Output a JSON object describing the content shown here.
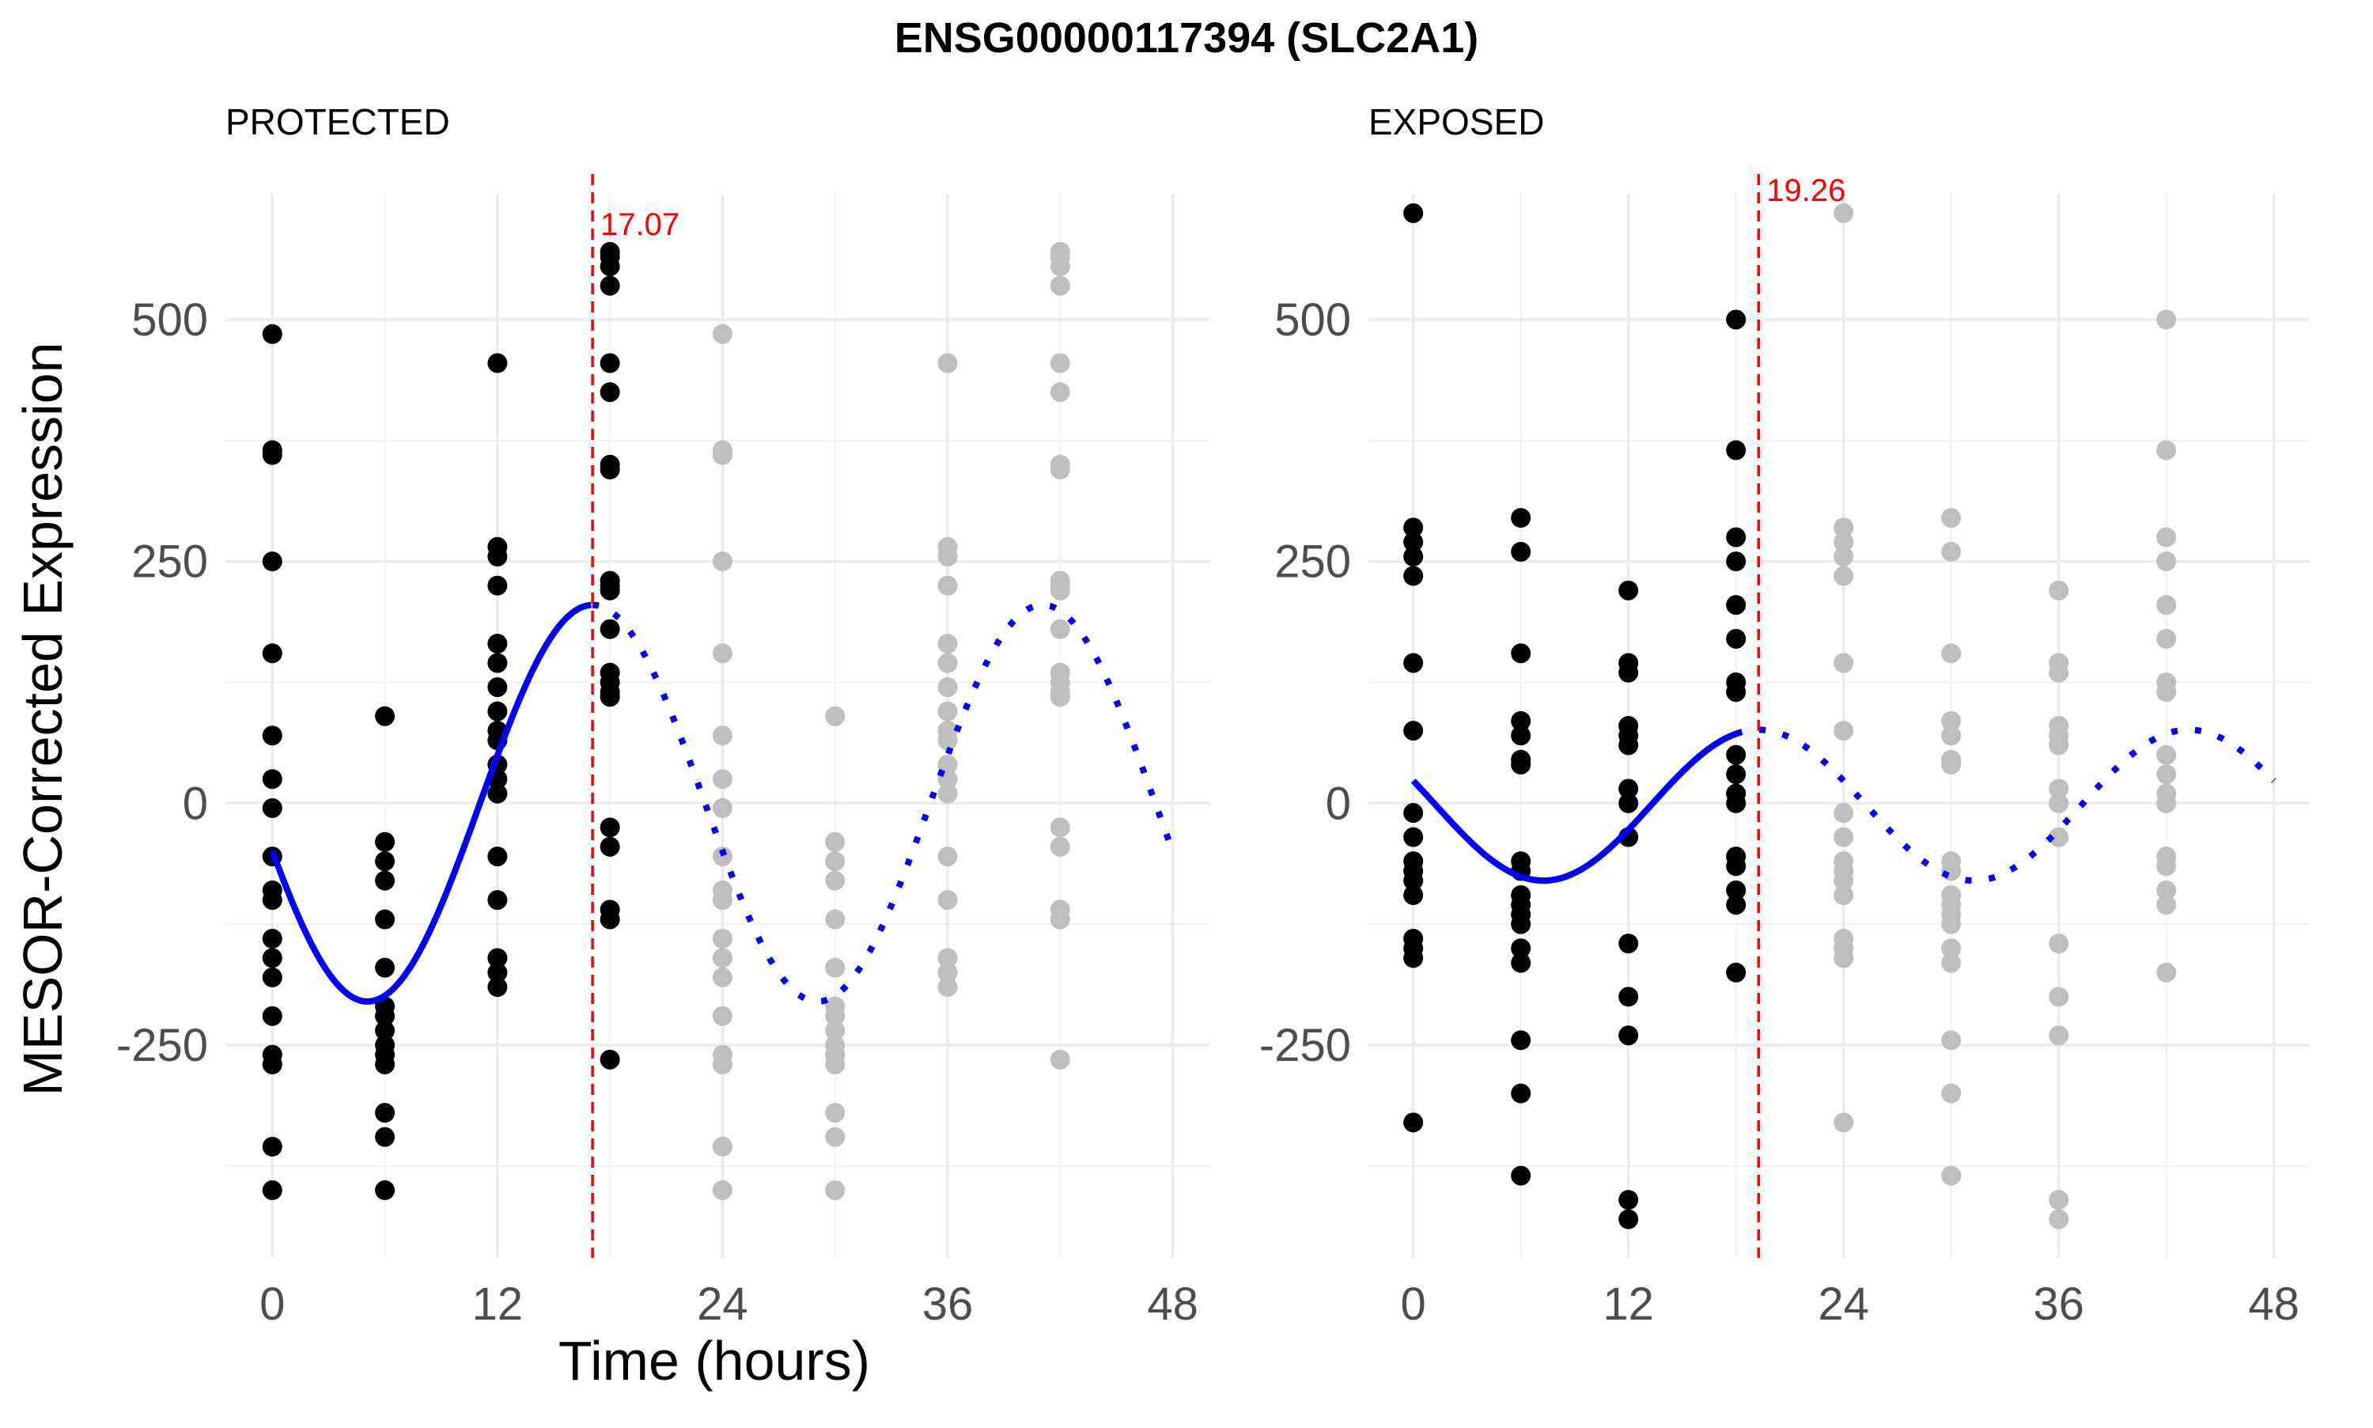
{
  "chart_data": {
    "type": "scatter",
    "title": "ENSG00000117394 (SLC2A1)",
    "xlabel": "Time (hours)",
    "ylabel": "MESOR-Corrected Expression",
    "x_ticks": [
      0,
      12,
      24,
      36,
      48
    ],
    "y_ticks": [
      -250,
      0,
      250,
      500
    ],
    "xlim": [
      -2.5,
      50
    ],
    "ylim": [
      -470,
      630
    ],
    "grid": true,
    "colors": {
      "observed": "#000000",
      "replicated": "#bebebe",
      "fit": "#0000ff",
      "peak": "#ff0000"
    },
    "panels": [
      {
        "name": "PROTECTED",
        "peak_time": 17.07,
        "peak_label": "17.07",
        "fit": {
          "mesor": 0,
          "amplitude": 205,
          "period": 24,
          "peak": 17.07,
          "fit_end": 17.07,
          "x_end": 48
        },
        "times": [
          0,
          6,
          12,
          18
        ],
        "points": [
          [
            485,
            365,
            360,
            250,
            155,
            70,
            25,
            -5,
            -55,
            -90,
            -100,
            -140,
            -160,
            -180,
            -220,
            -260,
            -270,
            -355,
            -400
          ],
          [
            90,
            -40,
            -60,
            -80,
            -120,
            -170,
            -210,
            -220,
            -235,
            -250,
            -260,
            -270,
            -320,
            -345,
            -400
          ],
          [
            455,
            265,
            255,
            225,
            165,
            145,
            120,
            95,
            75,
            65,
            40,
            25,
            10,
            -55,
            -100,
            -160,
            -175,
            -190
          ],
          [
            570,
            565,
            555,
            535,
            455,
            425,
            350,
            345,
            230,
            225,
            220,
            180,
            135,
            125,
            115,
            110,
            -25,
            -45,
            -110,
            -120,
            -265
          ]
        ]
      },
      {
        "name": "EXPOSED",
        "peak_time": 19.26,
        "peak_label": "19.26",
        "fit": {
          "mesor": -2,
          "amplitude": 78,
          "period": 24,
          "peak": 19.26,
          "fit_end": 18,
          "x_end": 48
        },
        "times": [
          0,
          6,
          12,
          18
        ],
        "points": [
          [
            610,
            285,
            270,
            255,
            235,
            145,
            75,
            -10,
            -35,
            -60,
            -70,
            -80,
            -95,
            -140,
            -150,
            -160,
            -330
          ],
          [
            295,
            260,
            155,
            85,
            70,
            45,
            40,
            -60,
            -70,
            -95,
            -105,
            -115,
            -125,
            -150,
            -165,
            -245,
            -300,
            -385
          ],
          [
            220,
            145,
            135,
            80,
            70,
            60,
            15,
            0,
            -35,
            -145,
            -200,
            -240,
            -410,
            -430
          ],
          [
            500,
            365,
            275,
            250,
            205,
            170,
            125,
            115,
            50,
            30,
            10,
            0,
            -55,
            -65,
            -90,
            -105,
            -175
          ]
        ]
      }
    ]
  }
}
